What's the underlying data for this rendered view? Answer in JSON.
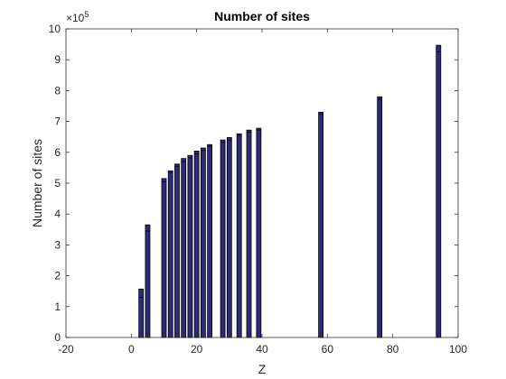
{
  "chart_data": {
    "type": "bar",
    "title": "Number of sites",
    "xlabel": "Z",
    "ylabel": "Number of sites",
    "xlim": [
      -20,
      100
    ],
    "ylim": [
      0,
      1000000
    ],
    "x_ticks": [
      "-20",
      "0",
      "20",
      "40",
      "60",
      "80",
      "100"
    ],
    "y_ticks": [
      "0",
      "1",
      "2",
      "3",
      "4",
      "5",
      "6",
      "7",
      "8",
      "9",
      "10"
    ],
    "y_exponent_base": "×10",
    "y_exponent_power": "5",
    "grid": false,
    "bar_color": "#2e2a78",
    "bar_edge_color": "#000000",
    "x": [
      3,
      5,
      10,
      12,
      14,
      16,
      18,
      20,
      22,
      24,
      28,
      30,
      33,
      36,
      39,
      58,
      76,
      94
    ],
    "values": [
      157000,
      365000,
      515000,
      540000,
      562000,
      580000,
      590000,
      604000,
      614000,
      625000,
      640000,
      648000,
      660000,
      672000,
      678000,
      730000,
      780000,
      947000
    ],
    "inner_values": [
      130000,
      345000,
      505000,
      533000,
      555000,
      570000,
      582000,
      595000,
      606000,
      620000,
      632000,
      640000,
      655000,
      665000,
      672000,
      725000,
      772000,
      925000
    ]
  }
}
